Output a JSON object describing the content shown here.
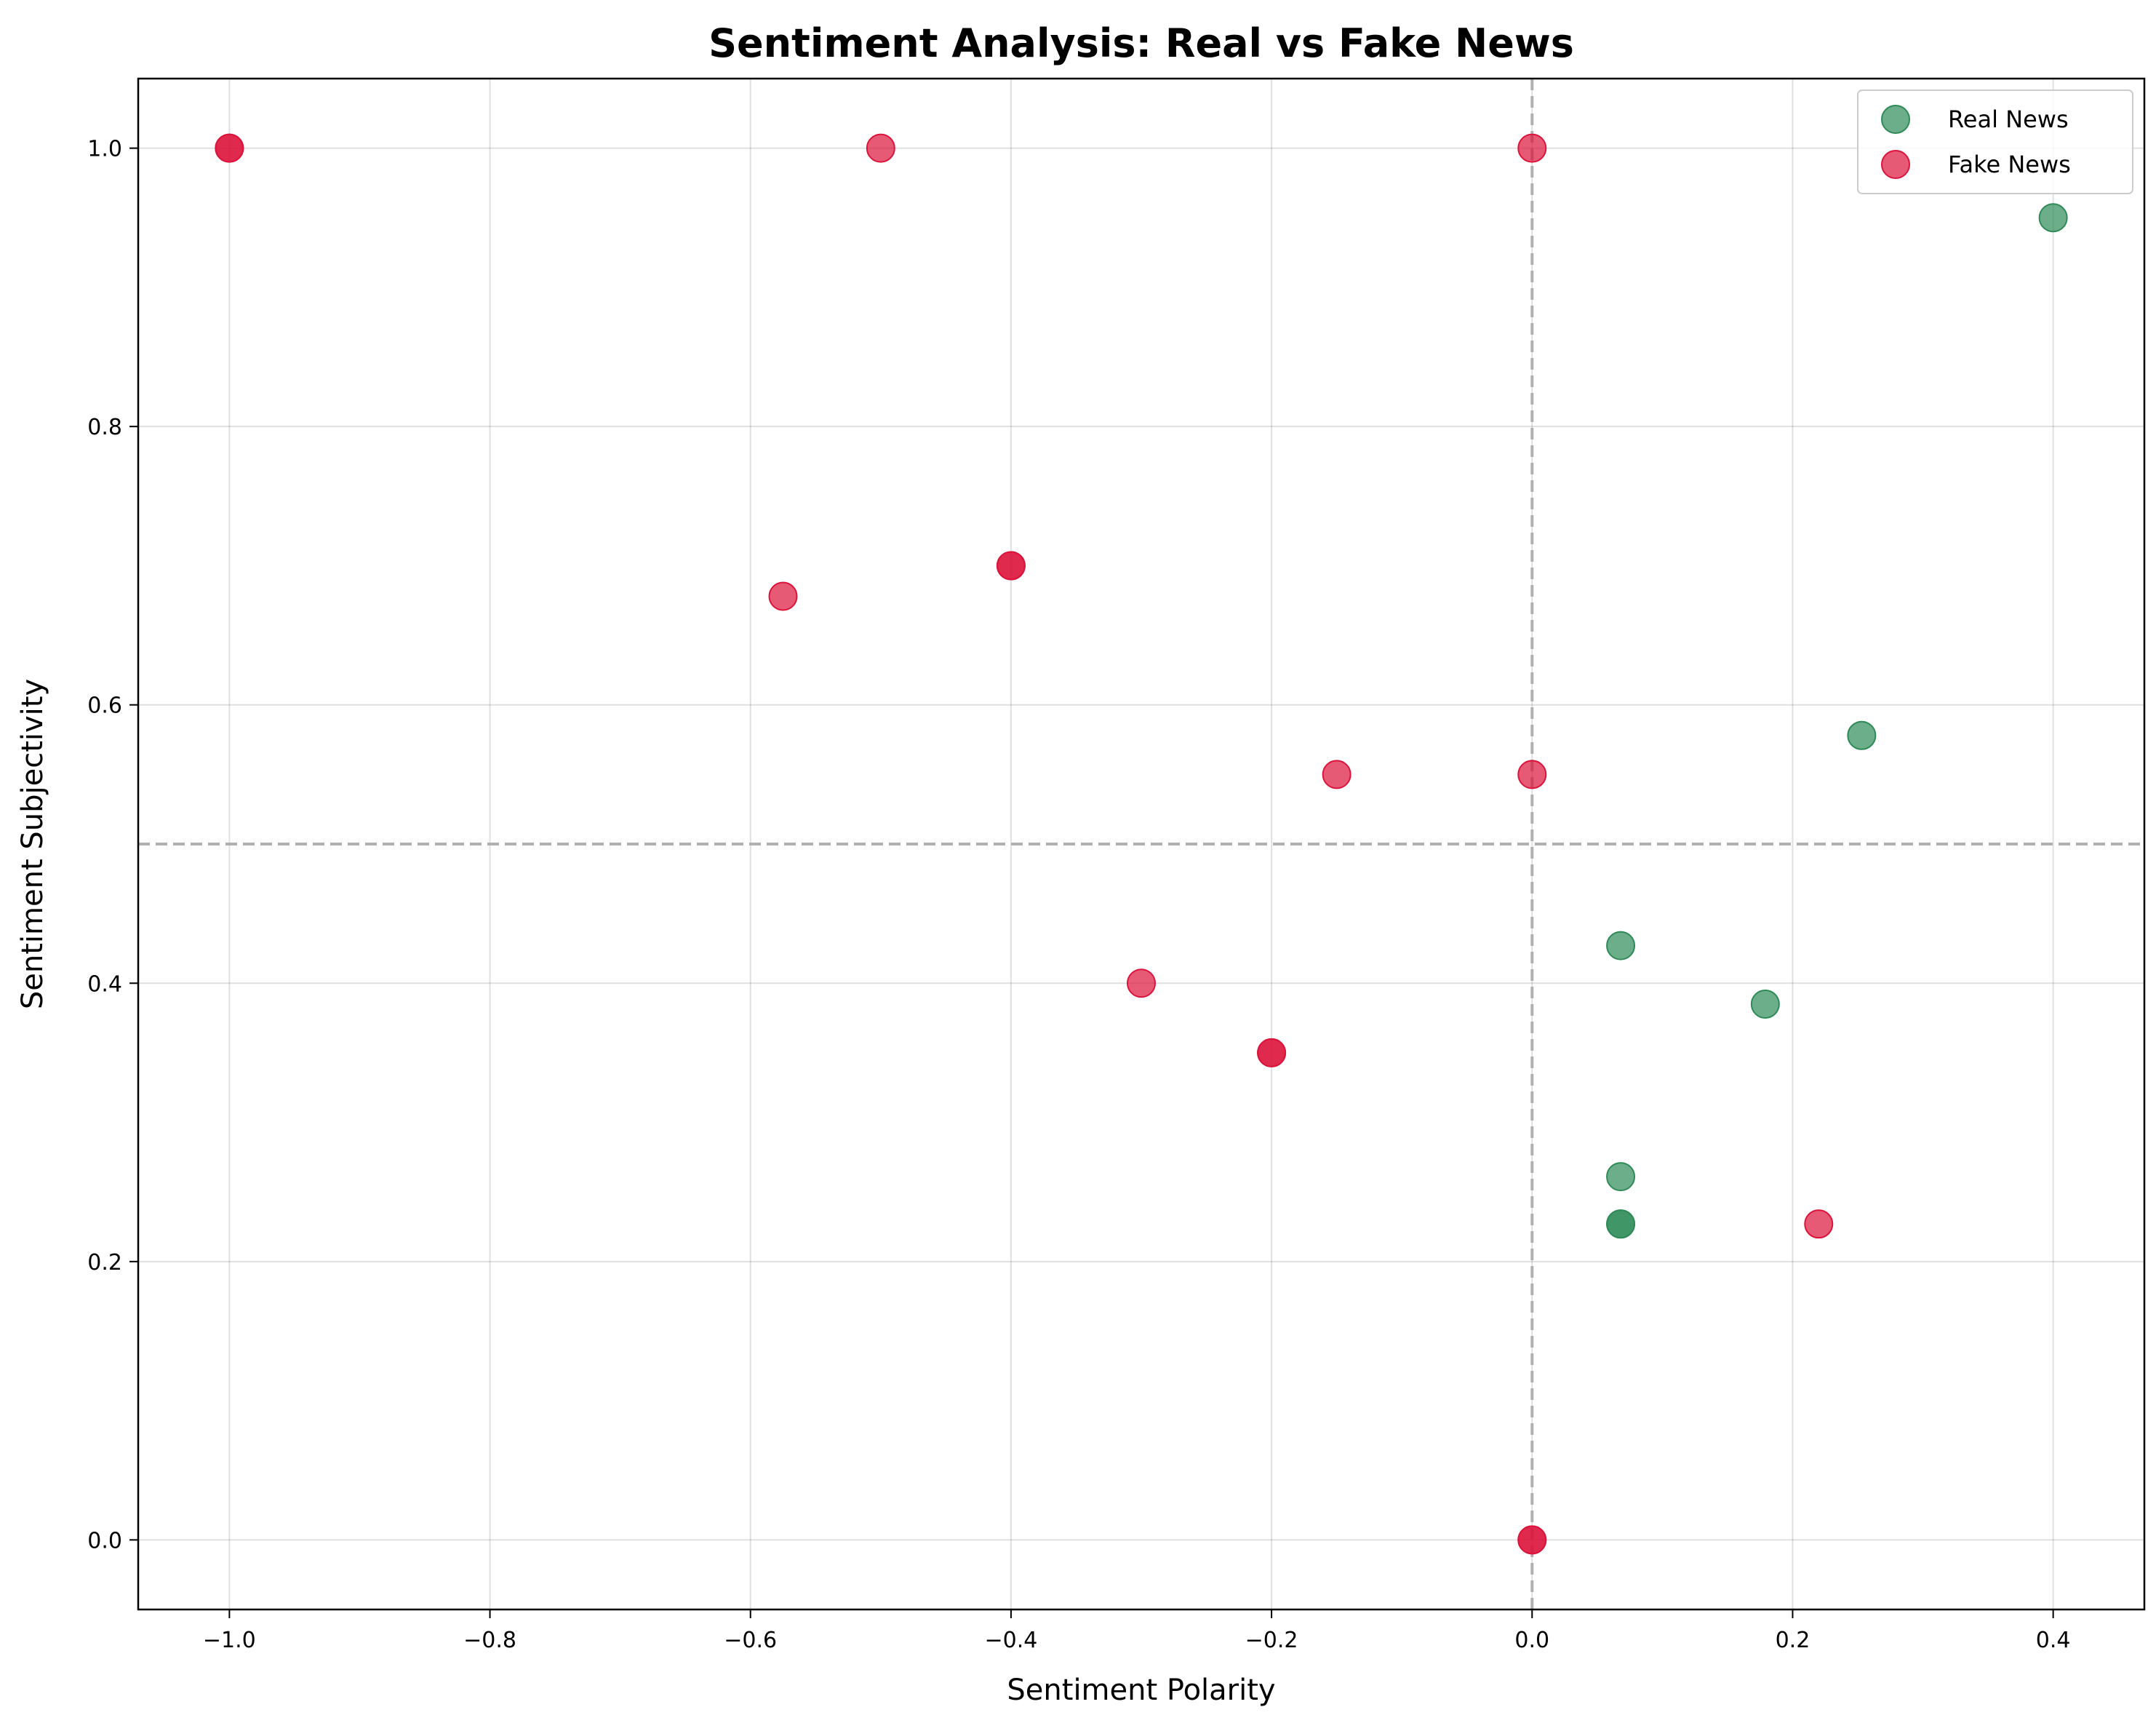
{
  "chart_data": {
    "type": "scatter",
    "title": "Sentiment Analysis: Real vs Fake News",
    "xlabel": "Sentiment Polarity",
    "ylabel": "Sentiment Subjectivity",
    "xlim": [
      -1.07,
      0.47
    ],
    "ylim": [
      -0.05,
      1.05
    ],
    "x_ticks": [
      -1.0,
      -0.8,
      -0.6,
      -0.4,
      -0.2,
      0.0,
      0.2,
      0.4
    ],
    "x_tick_labels": [
      "−1.0",
      "−0.8",
      "−0.6",
      "−0.4",
      "−0.2",
      "0.0",
      "0.2",
      "0.4"
    ],
    "y_ticks": [
      0.0,
      0.2,
      0.4,
      0.6,
      0.8,
      1.0
    ],
    "y_tick_labels": [
      "0.0",
      "0.2",
      "0.4",
      "0.6",
      "0.8",
      "1.0"
    ],
    "grid": true,
    "reference_lines": {
      "x": 0.0,
      "y": 0.5,
      "style": "dashed",
      "color": "#b0b0b0"
    },
    "legend": {
      "position": "top-right",
      "entries": [
        "Real News",
        "Fake News"
      ]
    },
    "series": [
      {
        "name": "Real News",
        "color": "#2e8b57",
        "points": [
          {
            "x": 0.4,
            "y": 0.95
          },
          {
            "x": 0.253,
            "y": 0.578
          },
          {
            "x": 0.068,
            "y": 0.427
          },
          {
            "x": 0.179,
            "y": 0.385
          },
          {
            "x": 0.068,
            "y": 0.261
          },
          {
            "x": 0.068,
            "y": 0.227
          },
          {
            "x": 0.068,
            "y": 0.227
          }
        ]
      },
      {
        "name": "Fake News",
        "color": "#dc143c",
        "points": [
          {
            "x": -1.0,
            "y": 1.0
          },
          {
            "x": -1.0,
            "y": 1.0
          },
          {
            "x": -0.5,
            "y": 1.0
          },
          {
            "x": 0.0,
            "y": 1.0
          },
          {
            "x": -0.4,
            "y": 0.7
          },
          {
            "x": -0.4,
            "y": 0.7
          },
          {
            "x": -0.575,
            "y": 0.678
          },
          {
            "x": -0.15,
            "y": 0.55
          },
          {
            "x": 0.0,
            "y": 0.55
          },
          {
            "x": -0.3,
            "y": 0.4
          },
          {
            "x": -0.2,
            "y": 0.35
          },
          {
            "x": -0.2,
            "y": 0.35
          },
          {
            "x": 0.22,
            "y": 0.227
          },
          {
            "x": 0.0,
            "y": 0.0
          },
          {
            "x": 0.0,
            "y": 0.0
          }
        ]
      }
    ]
  }
}
